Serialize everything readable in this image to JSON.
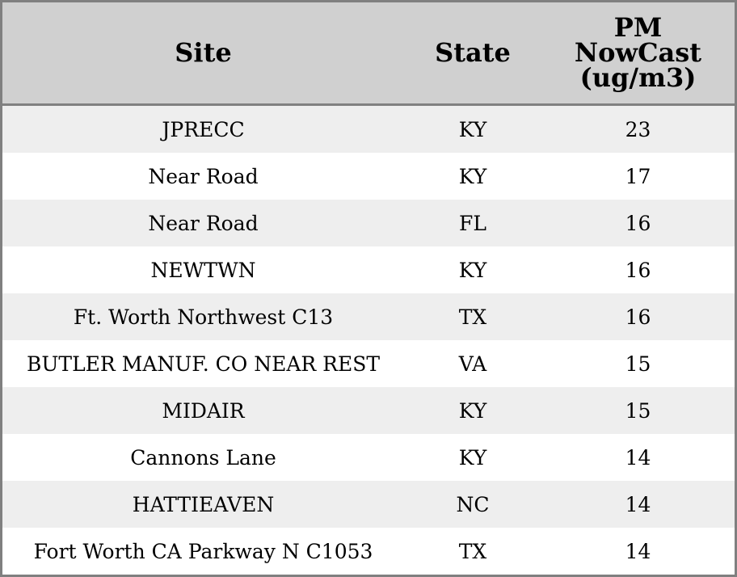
{
  "headers": [
    "Site",
    "State",
    "PM\nNowCast\n(ug/m3)"
  ],
  "header_lines": [
    "PM",
    "NowCast",
    "(ug/m3)"
  ],
  "rows": [
    {
      "site": "JPRECC",
      "state": "KY",
      "pm": "23"
    },
    {
      "site": "Near Road",
      "state": "KY",
      "pm": "17"
    },
    {
      "site": "Near Road",
      "state": "FL",
      "pm": "16"
    },
    {
      "site": "NEWTWN",
      "state": "KY",
      "pm": "16"
    },
    {
      "site": "Ft. Worth Northwest C13",
      "state": "TX",
      "pm": "16"
    },
    {
      "site": "BUTLER MANUF. CO NEAR REST",
      "state": "VA",
      "pm": "15"
    },
    {
      "site": "MIDAIR",
      "state": "KY",
      "pm": "15"
    },
    {
      "site": "Cannons Lane",
      "state": "KY",
      "pm": "14"
    },
    {
      "site": "HATTIEAVEN",
      "state": "NC",
      "pm": "14"
    },
    {
      "site": "Fort Worth CA Parkway N C1053",
      "state": "TX",
      "pm": "14"
    }
  ],
  "colors": {
    "header_bg": "#d0d0d0",
    "stripe": "#eeeeee",
    "border": "#808080"
  }
}
